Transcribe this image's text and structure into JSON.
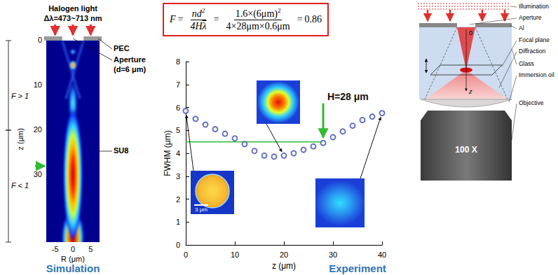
{
  "formula": {
    "lhs": "F",
    "equals": "=",
    "numerator": "nd",
    "exponent": "2",
    "denominator": "4H",
    "mean_symbol": "λ",
    "values_numerator": "1.6×(6μm)",
    "values_denominator": "4×28μm×0.6μm",
    "result": "0.86"
  },
  "simulation": {
    "source": "Halogen light",
    "bandwidth": "Δλ=473~713 nm",
    "labels": {
      "pec": "PEC",
      "aperture": [
        "Aperture",
        "(d=6 μm)"
      ],
      "medium": "SU8"
    },
    "aperture_diameter": 6,
    "zlim": [
      0,
      45
    ],
    "zticks": [
      0,
      10,
      20,
      30
    ],
    "z_label": "z (μm)",
    "rlim": [
      -7.5,
      7.5
    ],
    "rticks": [
      -5,
      0,
      5
    ],
    "r_label": "R (μm)",
    "regions": [
      {
        "label": "F > 1",
        "z": [
          0,
          20
        ]
      },
      {
        "label": "F < 1",
        "z": [
          20,
          45
        ]
      }
    ],
    "marker_z": 28,
    "marker_color": "#33bb33",
    "caption": "Simulation"
  },
  "chart_data": {
    "type": "scatter",
    "x": [
      0,
      2,
      4,
      6,
      8,
      10,
      12,
      14,
      16,
      18,
      20,
      22,
      24,
      26,
      28,
      30,
      32,
      34,
      36,
      38,
      40
    ],
    "values": [
      5.85,
      5.5,
      5.25,
      5.05,
      4.85,
      4.65,
      4.4,
      4.1,
      3.9,
      3.85,
      3.9,
      4,
      4.15,
      4.3,
      4.45,
      4.7,
      4.95,
      5.2,
      5.45,
      5.6,
      5.75
    ],
    "color": "#3f51b5",
    "marker": "open_circle",
    "xlim": [
      0,
      40
    ],
    "xticks": [
      0,
      10,
      20,
      30,
      40
    ],
    "ylim": [
      0,
      8
    ],
    "yticks": [
      0,
      1,
      2,
      3,
      4,
      5,
      6,
      7,
      8
    ],
    "x_label": "z (μm)",
    "y_label": "FWHM (μm)",
    "grid": false,
    "reference_line": {
      "y": 4.5,
      "x": [
        0,
        28
      ],
      "color": "#33bb33"
    },
    "annotation": {
      "text": "H=28 μm",
      "x": 28,
      "color": "#33bb33"
    },
    "insets": [
      {
        "z": 0,
        "scale_bar": "3 μm"
      },
      {
        "z": 20
      },
      {
        "z": 40
      }
    ],
    "caption": "Experiment"
  },
  "schematic": {
    "labels": [
      "Illumination",
      "Aperture",
      "Al",
      "Focal plane",
      "Diffraction",
      "Glass",
      "Immersion oil",
      "Objective"
    ],
    "objective": "100 X",
    "origin": "0",
    "axis": "z"
  }
}
